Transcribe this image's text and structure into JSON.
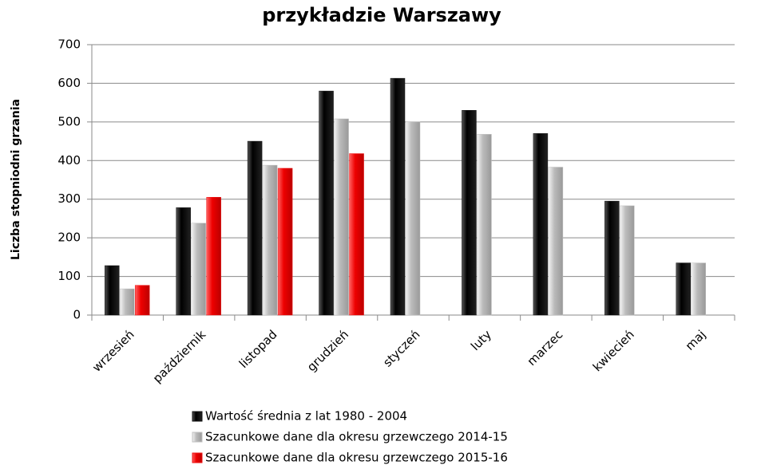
{
  "chart_data": {
    "type": "bar",
    "title": "przykładzie Warszawy",
    "y_label": "Liczba stopniodni grzania",
    "categories": [
      "wrzesień",
      "październik",
      "listopad",
      "grudzień",
      "styczeń",
      "luty",
      "marzec",
      "kwiecień",
      "maj"
    ],
    "series": [
      {
        "name": "Wartość średnia z lat 1980 - 2004",
        "color": "#111111",
        "values": [
          128,
          278,
          450,
          580,
          613,
          530,
          470,
          295,
          135
        ]
      },
      {
        "name": "Szacunkowe dane dla okresu grzewczego 2014-15",
        "color": "#c0c0c0",
        "values": [
          68,
          238,
          388,
          508,
          500,
          468,
          383,
          283,
          135
        ]
      },
      {
        "name": "Szacunkowe dane dla okresu grzewczego 2015-16",
        "color": "#ee1111",
        "values": [
          77,
          305,
          380,
          418,
          null,
          null,
          null,
          null,
          null
        ]
      }
    ],
    "ylim": [
      0,
      700
    ],
    "yticks": [
      0,
      100,
      200,
      300,
      400,
      500,
      600,
      700
    ],
    "grid": true
  }
}
